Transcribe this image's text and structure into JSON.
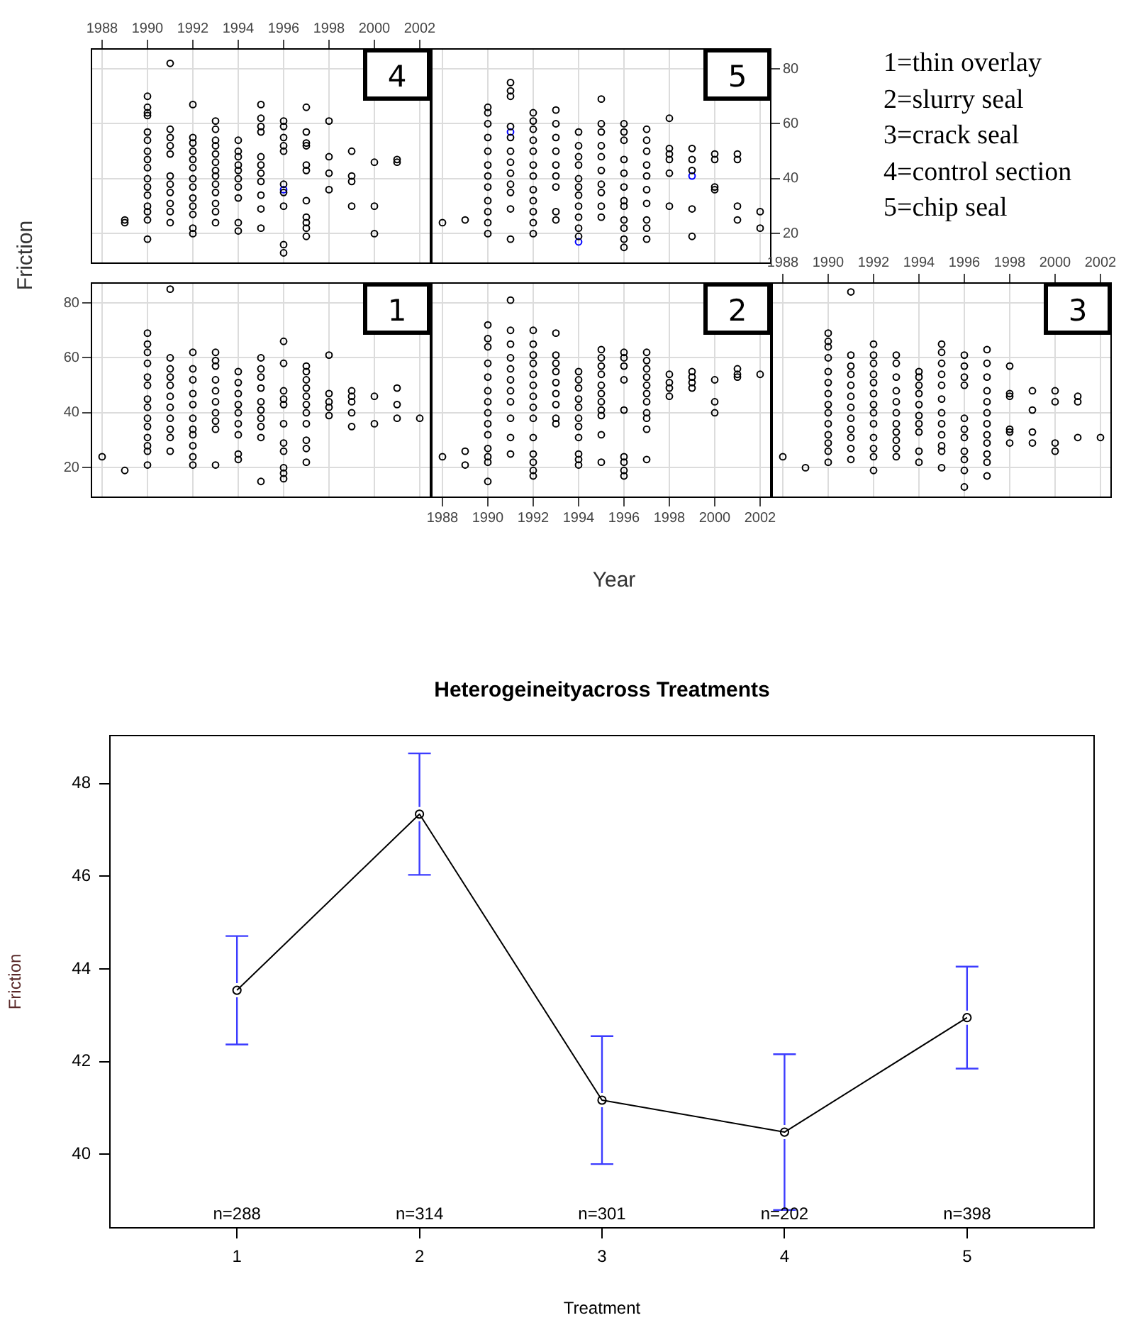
{
  "chart_data": [
    {
      "type": "scatter",
      "title": "4",
      "xlim": [
        1987.5,
        2002.5
      ],
      "xticks": [
        1988,
        1990,
        1992,
        1994,
        1996,
        1998,
        2000,
        2002
      ],
      "ylim": [
        9,
        87.5
      ],
      "yticks": [
        20,
        40,
        60,
        80
      ],
      "grid": true,
      "tick_labels": "x",
      "marker": "circle",
      "series": [
        {
          "color": "#000000",
          "x": [
            1989,
            1989,
            1990,
            1990,
            1990,
            1990,
            1990,
            1990,
            1990,
            1990,
            1990,
            1990,
            1990,
            1990,
            1990,
            1990,
            1990,
            1990,
            1991,
            1991,
            1991,
            1991,
            1991,
            1991,
            1991,
            1991,
            1991,
            1991,
            1991,
            1992,
            1992,
            1992,
            1992,
            1992,
            1992,
            1992,
            1992,
            1992,
            1992,
            1992,
            1992,
            1992,
            1993,
            1993,
            1993,
            1993,
            1993,
            1993,
            1993,
            1993,
            1993,
            1993,
            1993,
            1993,
            1993,
            1994,
            1994,
            1994,
            1994,
            1994,
            1994,
            1994,
            1994,
            1994,
            1994,
            1995,
            1995,
            1995,
            1995,
            1995,
            1995,
            1995,
            1995,
            1995,
            1995,
            1995,
            1996,
            1996,
            1996,
            1996,
            1996,
            1996,
            1996,
            1996,
            1996,
            1996,
            1997,
            1997,
            1997,
            1997,
            1997,
            1997,
            1997,
            1997,
            1997,
            1997,
            1997,
            1998,
            1998,
            1998,
            1998,
            1999,
            1999,
            1999,
            1999,
            2000,
            2000,
            2000,
            2001,
            2001
          ],
          "values": [
            24,
            25,
            70,
            66,
            64,
            63,
            57,
            54,
            50,
            47,
            44,
            40,
            37,
            34,
            30,
            28,
            25,
            18,
            82,
            58,
            55,
            52,
            49,
            41,
            38,
            35,
            31,
            28,
            24,
            67,
            55,
            53,
            50,
            47,
            44,
            40,
            37,
            33,
            30,
            27,
            22,
            20,
            61,
            58,
            54,
            52,
            49,
            46,
            43,
            41,
            38,
            35,
            31,
            28,
            24,
            54,
            50,
            48,
            45,
            43,
            40,
            37,
            33,
            24,
            21,
            67,
            62,
            59,
            57,
            48,
            45,
            42,
            39,
            34,
            29,
            22,
            61,
            59,
            55,
            52,
            50,
            38,
            35,
            30,
            16,
            13,
            66,
            57,
            53,
            52,
            45,
            43,
            32,
            26,
            24,
            22,
            19,
            61,
            48,
            42,
            36,
            50,
            41,
            39,
            30,
            46,
            30,
            20,
            47,
            46
          ]
        },
        {
          "color": "#0000ff",
          "x": [
            1996
          ],
          "values": [
            36
          ]
        }
      ]
    },
    {
      "type": "scatter",
      "title": "5",
      "xlim": [
        1987.5,
        2002.5
      ],
      "xticks": [
        1988,
        1990,
        1992,
        1994,
        1996,
        1998,
        2000,
        2002
      ],
      "ylim": [
        9,
        87.5
      ],
      "yticks": [
        20,
        40,
        60,
        80
      ],
      "grid": true,
      "tick_labels": "y",
      "marker": "circle",
      "series": [
        {
          "color": "#000000",
          "x": [
            1988,
            1989,
            1990,
            1990,
            1990,
            1990,
            1990,
            1990,
            1990,
            1990,
            1990,
            1990,
            1990,
            1990,
            1991,
            1991,
            1991,
            1991,
            1991,
            1991,
            1991,
            1991,
            1991,
            1991,
            1991,
            1991,
            1992,
            1992,
            1992,
            1992,
            1992,
            1992,
            1992,
            1992,
            1992,
            1992,
            1992,
            1992,
            1993,
            1993,
            1993,
            1993,
            1993,
            1993,
            1993,
            1993,
            1993,
            1994,
            1994,
            1994,
            1994,
            1994,
            1994,
            1994,
            1994,
            1994,
            1994,
            1994,
            1995,
            1995,
            1995,
            1995,
            1995,
            1995,
            1995,
            1995,
            1995,
            1995,
            1996,
            1996,
            1996,
            1996,
            1996,
            1996,
            1996,
            1996,
            1996,
            1996,
            1996,
            1996,
            1997,
            1997,
            1997,
            1997,
            1997,
            1997,
            1997,
            1997,
            1997,
            1997,
            1998,
            1998,
            1998,
            1998,
            1998,
            1998,
            1999,
            1999,
            1999,
            1999,
            1999,
            2000,
            2000,
            2000,
            2000,
            2001,
            2001,
            2001,
            2001,
            2002,
            2002
          ],
          "values": [
            24,
            25,
            66,
            64,
            60,
            55,
            50,
            45,
            41,
            37,
            32,
            28,
            24,
            20,
            75,
            72,
            70,
            59,
            55,
            50,
            46,
            42,
            38,
            35,
            29,
            18,
            64,
            61,
            58,
            54,
            50,
            45,
            41,
            36,
            32,
            28,
            24,
            20,
            65,
            60,
            55,
            50,
            45,
            41,
            37,
            28,
            25,
            57,
            52,
            48,
            45,
            40,
            37,
            34,
            30,
            26,
            22,
            19,
            69,
            60,
            57,
            52,
            48,
            43,
            38,
            35,
            30,
            26,
            60,
            57,
            54,
            47,
            42,
            37,
            32,
            30,
            25,
            22,
            18,
            15,
            58,
            54,
            50,
            45,
            41,
            36,
            31,
            25,
            22,
            18,
            62,
            51,
            49,
            47,
            42,
            30,
            51,
            47,
            43,
            29,
            19,
            49,
            47,
            37,
            36,
            49,
            47,
            30,
            25,
            28,
            22
          ]
        },
        {
          "color": "#0000ff",
          "x": [
            1991,
            1994,
            1999
          ],
          "values": [
            57,
            17,
            41
          ]
        }
      ]
    },
    {
      "type": "other",
      "annotations": [
        "1=thin overlay",
        "2=slurry seal",
        "3=crack seal",
        "4=control section",
        "5=chip seal"
      ]
    },
    {
      "type": "scatter",
      "title": "1",
      "ylabel": "Friction",
      "xlim": [
        1987.5,
        2002.5
      ],
      "xticks": [
        1988,
        1990,
        1992,
        1994,
        1996,
        1998,
        2000,
        2002
      ],
      "ylim": [
        9,
        87.5
      ],
      "yticks": [
        20,
        40,
        60,
        80
      ],
      "grid": true,
      "tick_labels": "y",
      "marker": "circle",
      "series": [
        {
          "color": "#000000",
          "x": [
            1988,
            1989,
            1990,
            1990,
            1990,
            1990,
            1990,
            1990,
            1990,
            1990,
            1990,
            1990,
            1990,
            1990,
            1990,
            1990,
            1991,
            1991,
            1991,
            1991,
            1991,
            1991,
            1991,
            1991,
            1991,
            1991,
            1991,
            1992,
            1992,
            1992,
            1992,
            1992,
            1992,
            1992,
            1992,
            1992,
            1992,
            1992,
            1993,
            1993,
            1993,
            1993,
            1993,
            1993,
            1993,
            1993,
            1993,
            1993,
            1994,
            1994,
            1994,
            1994,
            1994,
            1994,
            1994,
            1994,
            1994,
            1995,
            1995,
            1995,
            1995,
            1995,
            1995,
            1995,
            1995,
            1995,
            1995,
            1996,
            1996,
            1996,
            1996,
            1996,
            1996,
            1996,
            1996,
            1996,
            1996,
            1996,
            1997,
            1997,
            1997,
            1997,
            1997,
            1997,
            1997,
            1997,
            1997,
            1997,
            1997,
            1998,
            1998,
            1998,
            1998,
            1998,
            1999,
            1999,
            1999,
            1999,
            1999,
            2000,
            2000,
            2001,
            2001,
            2001,
            2002
          ],
          "values": [
            24,
            19,
            69,
            65,
            62,
            58,
            53,
            50,
            45,
            42,
            38,
            35,
            31,
            28,
            26,
            21,
            85,
            60,
            56,
            53,
            50,
            46,
            42,
            38,
            34,
            31,
            26,
            62,
            56,
            52,
            47,
            43,
            38,
            34,
            32,
            28,
            24,
            21,
            62,
            59,
            57,
            52,
            48,
            44,
            40,
            37,
            34,
            21,
            55,
            51,
            47,
            43,
            40,
            36,
            32,
            25,
            23,
            60,
            56,
            53,
            49,
            44,
            41,
            38,
            35,
            31,
            15,
            66,
            58,
            48,
            45,
            43,
            36,
            29,
            26,
            20,
            18,
            16,
            57,
            55,
            52,
            49,
            46,
            43,
            40,
            36,
            30,
            27,
            22,
            61,
            47,
            44,
            42,
            39,
            48,
            46,
            44,
            40,
            35,
            46,
            36,
            49,
            43,
            38,
            38
          ]
        }
      ]
    },
    {
      "type": "scatter",
      "title": "2",
      "xlabel": "Year",
      "xlim": [
        1987.5,
        2002.5
      ],
      "xticks": [
        1988,
        1990,
        1992,
        1994,
        1996,
        1998,
        2000,
        2002
      ],
      "ylim": [
        9,
        87.5
      ],
      "yticks": [
        20,
        40,
        60,
        80
      ],
      "grid": true,
      "tick_labels": "x",
      "marker": "circle",
      "series": [
        {
          "color": "#000000",
          "x": [
            1988,
            1989,
            1989,
            1990,
            1990,
            1990,
            1990,
            1990,
            1990,
            1990,
            1990,
            1990,
            1990,
            1990,
            1990,
            1990,
            1990,
            1991,
            1991,
            1991,
            1991,
            1991,
            1991,
            1991,
            1991,
            1991,
            1991,
            1991,
            1992,
            1992,
            1992,
            1992,
            1992,
            1992,
            1992,
            1992,
            1992,
            1992,
            1992,
            1992,
            1992,
            1992,
            1993,
            1993,
            1993,
            1993,
            1993,
            1993,
            1993,
            1993,
            1993,
            1994,
            1994,
            1994,
            1994,
            1994,
            1994,
            1994,
            1994,
            1994,
            1994,
            1994,
            1995,
            1995,
            1995,
            1995,
            1995,
            1995,
            1995,
            1995,
            1995,
            1995,
            1995,
            1996,
            1996,
            1996,
            1996,
            1996,
            1996,
            1996,
            1996,
            1996,
            1997,
            1997,
            1997,
            1997,
            1997,
            1997,
            1997,
            1997,
            1997,
            1997,
            1997,
            1998,
            1998,
            1998,
            1998,
            1999,
            1999,
            1999,
            1999,
            2000,
            2000,
            2000,
            2001,
            2001,
            2001,
            2002
          ],
          "values": [
            24,
            26,
            21,
            72,
            67,
            64,
            58,
            53,
            48,
            44,
            40,
            36,
            32,
            27,
            24,
            22,
            15,
            81,
            70,
            65,
            60,
            56,
            52,
            48,
            44,
            38,
            31,
            25,
            70,
            65,
            61,
            58,
            54,
            50,
            46,
            42,
            38,
            31,
            25,
            22,
            19,
            17,
            69,
            61,
            58,
            55,
            51,
            47,
            43,
            38,
            36,
            55,
            52,
            49,
            45,
            42,
            38,
            35,
            31,
            25,
            23,
            21,
            63,
            60,
            57,
            54,
            50,
            47,
            44,
            41,
            39,
            32,
            22,
            62,
            60,
            57,
            52,
            41,
            24,
            22,
            19,
            17,
            62,
            59,
            56,
            53,
            50,
            47,
            44,
            40,
            38,
            34,
            23,
            54,
            51,
            49,
            46,
            55,
            53,
            51,
            49,
            52,
            44,
            40,
            56,
            54,
            53,
            54
          ]
        }
      ]
    },
    {
      "type": "scatter",
      "title": "3",
      "xlim": [
        1987.5,
        2002.5
      ],
      "xticks": [
        1988,
        1990,
        1992,
        1994,
        1996,
        1998,
        2000,
        2002
      ],
      "ylim": [
        9,
        87.5
      ],
      "yticks": [
        20,
        40,
        60,
        80
      ],
      "grid": true,
      "tick_labels": "x",
      "marker": "circle",
      "series": [
        {
          "color": "#000000",
          "x": [
            1988,
            1989,
            1990,
            1990,
            1990,
            1990,
            1990,
            1990,
            1990,
            1990,
            1990,
            1990,
            1990,
            1990,
            1990,
            1990,
            1991,
            1991,
            1991,
            1991,
            1991,
            1991,
            1991,
            1991,
            1991,
            1991,
            1991,
            1991,
            1992,
            1992,
            1992,
            1992,
            1992,
            1992,
            1992,
            1992,
            1992,
            1992,
            1992,
            1992,
            1992,
            1993,
            1993,
            1993,
            1993,
            1993,
            1993,
            1993,
            1993,
            1993,
            1993,
            1993,
            1994,
            1994,
            1994,
            1994,
            1994,
            1994,
            1994,
            1994,
            1994,
            1994,
            1995,
            1995,
            1995,
            1995,
            1995,
            1995,
            1995,
            1995,
            1995,
            1995,
            1995,
            1995,
            1996,
            1996,
            1996,
            1996,
            1996,
            1996,
            1996,
            1996,
            1996,
            1996,
            1996,
            1997,
            1997,
            1997,
            1997,
            1997,
            1997,
            1997,
            1997,
            1997,
            1997,
            1997,
            1997,
            1998,
            1998,
            1998,
            1998,
            1998,
            1998,
            1999,
            1999,
            1999,
            1999,
            2000,
            2000,
            2000,
            2000,
            2001,
            2001,
            2001,
            2002
          ],
          "values": [
            24,
            20,
            69,
            66,
            64,
            60,
            55,
            51,
            47,
            43,
            40,
            36,
            32,
            29,
            26,
            22,
            84,
            61,
            57,
            54,
            50,
            46,
            42,
            38,
            34,
            31,
            27,
            23,
            65,
            61,
            58,
            54,
            51,
            47,
            43,
            40,
            36,
            31,
            27,
            24,
            19,
            61,
            58,
            53,
            48,
            44,
            40,
            36,
            33,
            30,
            27,
            24,
            55,
            53,
            50,
            47,
            43,
            39,
            36,
            33,
            26,
            22,
            65,
            62,
            58,
            54,
            50,
            45,
            40,
            36,
            32,
            28,
            26,
            20,
            61,
            57,
            53,
            50,
            38,
            34,
            31,
            26,
            23,
            19,
            13,
            63,
            58,
            53,
            48,
            44,
            40,
            36,
            32,
            29,
            25,
            22,
            17,
            57,
            47,
            46,
            34,
            33,
            29,
            48,
            41,
            33,
            29,
            48,
            44,
            29,
            26,
            46,
            44,
            31,
            31
          ]
        }
      ]
    },
    {
      "type": "line",
      "title": "Heterogeineityacross Treatments",
      "xlabel": "Treatment",
      "ylabel": "Friction",
      "x": [
        1,
        2,
        3,
        4,
        5
      ],
      "xlim": [
        0.3,
        5.7
      ],
      "xticks": [
        1,
        2,
        3,
        4,
        5
      ],
      "ylim": [
        38.4,
        49.05
      ],
      "yticks": [
        40,
        42,
        44,
        46,
        48
      ],
      "marker": "circle",
      "series": [
        {
          "color": "#000000",
          "values": [
            43.54,
            47.34,
            41.17,
            40.48,
            42.95
          ],
          "errors": [
            1.17,
            1.31,
            1.38,
            1.68,
            1.1
          ]
        }
      ],
      "annotations": [
        "n=288",
        "n=314",
        "n=301",
        "n=202",
        "n=398"
      ]
    }
  ]
}
